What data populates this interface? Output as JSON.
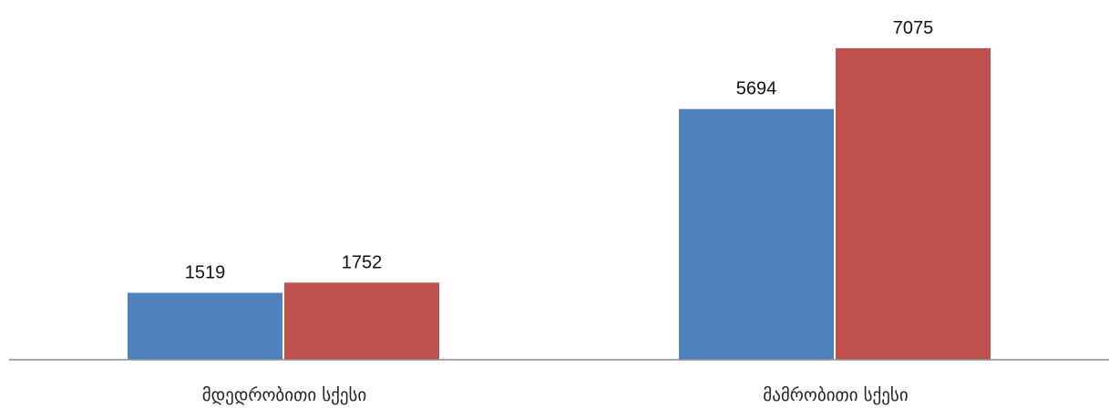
{
  "chart_data": {
    "type": "bar",
    "categories": [
      "მდედრობითი სქესი",
      "მამრობითი სქესი"
    ],
    "series": [
      {
        "values": [
          1519,
          5694
        ],
        "color": "#4F81BD"
      },
      {
        "values": [
          1752,
          7075
        ],
        "color": "#C0504D"
      }
    ],
    "title": "",
    "xlabel": "",
    "ylabel": "",
    "ylim": [
      0,
      8000
    ],
    "grid": false,
    "legend": "none",
    "data_labels": true
  },
  "colors": {
    "axis": "#8C8C8C",
    "background": "#FFFFFF"
  }
}
